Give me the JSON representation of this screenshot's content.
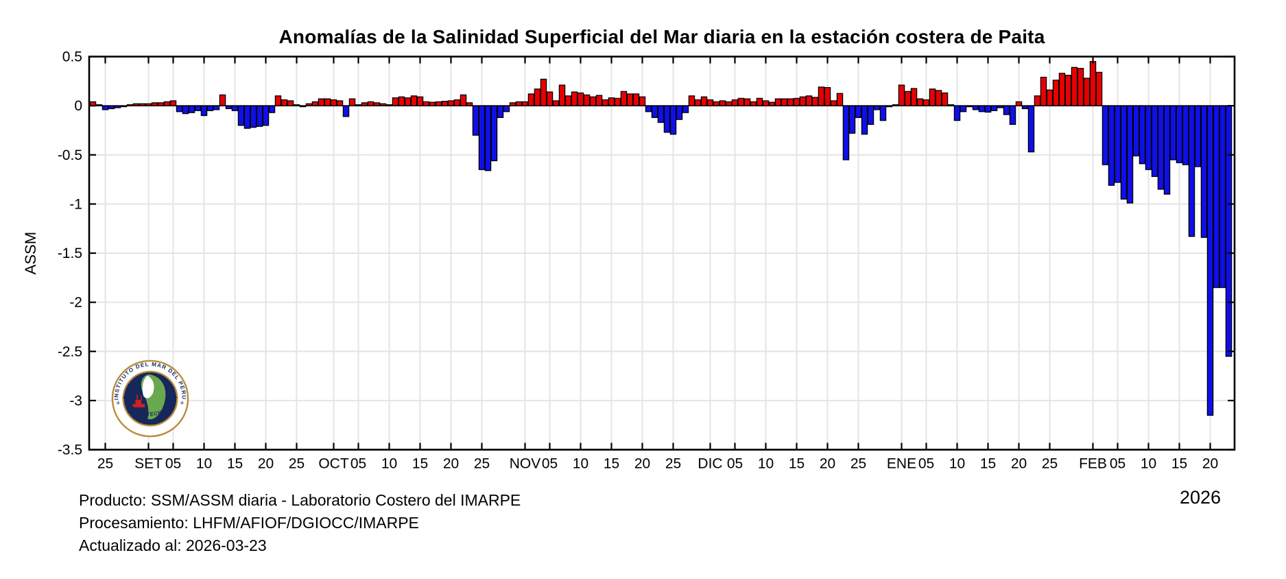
{
  "title": "Anomalías de la Salinidad Superficial del Mar diaria en la estación costera de Paita",
  "year_label": "2026",
  "footer": {
    "line1": "Producto: SSM/ASSM diaria - Laboratorio Costero del IMARPE",
    "line2": "Procesamiento: LHFM/AFIOF/DGIOCC/IMARPE",
    "line3": "Actualizado al: 2026-03-23"
  },
  "logo": {
    "top_text": "INSTITUTO DEL MAR DEL PERU",
    "bottom_text": "CIENCIA Y TECNOLOGÍA",
    "star": "✳"
  },
  "colors": {
    "positive_bar": "#e80000",
    "negative_bar": "#0f0fe8",
    "bar_edge": "#000000",
    "grid": "#e4e4e4",
    "frame": "#000000",
    "logo_ring_gold": "#b98d3e",
    "logo_sea_navy": "#16275c",
    "logo_land_green": "#6aa84f",
    "logo_ship_red": "#d42020"
  },
  "chart_data": {
    "type": "bar",
    "title": "Anomalías de la Salinidad Superficial del Mar diaria en la estación costera de Paita",
    "ylabel": "ASSM",
    "ylim": [
      -3.5,
      0.5
    ],
    "grid": true,
    "start_date": "2025-08-23",
    "end_date": "2026-02-23",
    "y_ticks": [
      {
        "value": 0.5,
        "label": "0.5"
      },
      {
        "value": 0,
        "label": "0"
      },
      {
        "value": -0.5,
        "label": "-0.5"
      },
      {
        "value": -1,
        "label": "-1"
      },
      {
        "value": -1.5,
        "label": "-1.5"
      },
      {
        "value": -2,
        "label": "-2"
      },
      {
        "value": -2.5,
        "label": "-2.5"
      },
      {
        "value": -3,
        "label": "-3"
      },
      {
        "value": -3.5,
        "label": "-3.5"
      }
    ],
    "x_ticks": [
      {
        "day_index": 2,
        "label": "25"
      },
      {
        "day_index": 9,
        "label": "SET"
      },
      {
        "day_index": 13,
        "label": "05"
      },
      {
        "day_index": 18,
        "label": "10"
      },
      {
        "day_index": 23,
        "label": "15"
      },
      {
        "day_index": 28,
        "label": "20"
      },
      {
        "day_index": 33,
        "label": "25"
      },
      {
        "day_index": 39,
        "label": "OCT"
      },
      {
        "day_index": 43,
        "label": "05"
      },
      {
        "day_index": 48,
        "label": "10"
      },
      {
        "day_index": 53,
        "label": "15"
      },
      {
        "day_index": 58,
        "label": "20"
      },
      {
        "day_index": 63,
        "label": "25"
      },
      {
        "day_index": 70,
        "label": "NOV"
      },
      {
        "day_index": 74,
        "label": "05"
      },
      {
        "day_index": 79,
        "label": "10"
      },
      {
        "day_index": 84,
        "label": "15"
      },
      {
        "day_index": 89,
        "label": "20"
      },
      {
        "day_index": 94,
        "label": "25"
      },
      {
        "day_index": 100,
        "label": "DIC"
      },
      {
        "day_index": 104,
        "label": "05"
      },
      {
        "day_index": 109,
        "label": "10"
      },
      {
        "day_index": 114,
        "label": "15"
      },
      {
        "day_index": 119,
        "label": "20"
      },
      {
        "day_index": 124,
        "label": "25"
      },
      {
        "day_index": 131,
        "label": "ENE"
      },
      {
        "day_index": 135,
        "label": "05"
      },
      {
        "day_index": 140,
        "label": "10"
      },
      {
        "day_index": 145,
        "label": "15"
      },
      {
        "day_index": 150,
        "label": "20"
      },
      {
        "day_index": 155,
        "label": "25"
      },
      {
        "day_index": 162,
        "label": "FEB"
      },
      {
        "day_index": 166,
        "label": "05"
      },
      {
        "day_index": 171,
        "label": "10"
      },
      {
        "day_index": 176,
        "label": "15"
      },
      {
        "day_index": 181,
        "label": "20"
      }
    ],
    "values": [
      0.04,
      0.01,
      -0.04,
      -0.03,
      -0.02,
      -0.01,
      0.01,
      0.02,
      0.02,
      0.02,
      0.03,
      0.03,
      0.04,
      0.05,
      -0.06,
      -0.08,
      -0.07,
      -0.05,
      -0.1,
      -0.05,
      -0.04,
      0.11,
      -0.03,
      -0.05,
      -0.2,
      -0.23,
      -0.22,
      -0.21,
      -0.2,
      -0.07,
      0.1,
      0.06,
      0.05,
      0.01,
      -0.01,
      0.02,
      0.04,
      0.07,
      0.07,
      0.06,
      0.05,
      -0.11,
      0.07,
      0.01,
      0.03,
      0.04,
      0.03,
      0.02,
      0.01,
      0.08,
      0.09,
      0.08,
      0.1,
      0.09,
      0.04,
      0.035,
      0.04,
      0.045,
      0.05,
      0.06,
      0.11,
      0.03,
      -0.3,
      -0.65,
      -0.66,
      -0.56,
      -0.12,
      -0.06,
      0.03,
      0.04,
      0.04,
      0.12,
      0.17,
      0.27,
      0.14,
      0.05,
      0.21,
      0.1,
      0.14,
      0.13,
      0.11,
      0.09,
      0.105,
      0.06,
      0.08,
      0.075,
      0.145,
      0.12,
      0.12,
      0.09,
      -0.06,
      -0.12,
      -0.17,
      -0.27,
      -0.29,
      -0.14,
      -0.07,
      0.1,
      0.06,
      0.09,
      0.06,
      0.04,
      0.05,
      0.04,
      0.06,
      0.075,
      0.07,
      0.04,
      0.075,
      0.05,
      0.035,
      0.07,
      0.07,
      0.07,
      0.075,
      0.09,
      0.1,
      0.085,
      0.19,
      0.185,
      0.05,
      0.125,
      -0.55,
      -0.28,
      -0.12,
      -0.29,
      -0.19,
      -0.04,
      -0.15,
      -0.01,
      0.01,
      0.21,
      0.145,
      0.175,
      0.07,
      0.06,
      0.17,
      0.155,
      0.13,
      0.01,
      -0.15,
      -0.06,
      -0.01,
      -0.04,
      -0.06,
      -0.065,
      -0.05,
      -0.02,
      -0.09,
      -0.19,
      0.04,
      -0.03,
      -0.47,
      0.1,
      0.29,
      0.16,
      0.26,
      0.33,
      0.31,
      0.39,
      0.38,
      0.28,
      0.45,
      0.34,
      -0.6,
      -0.81,
      -0.78,
      -0.95,
      -0.99,
      -0.51,
      -0.59,
      -0.65,
      -0.72,
      -0.85,
      -0.9,
      -0.55,
      -0.58,
      -0.6,
      -1.33,
      -0.62,
      -1.34,
      -3.15,
      -1.85,
      -1.85,
      -2.55
    ]
  }
}
